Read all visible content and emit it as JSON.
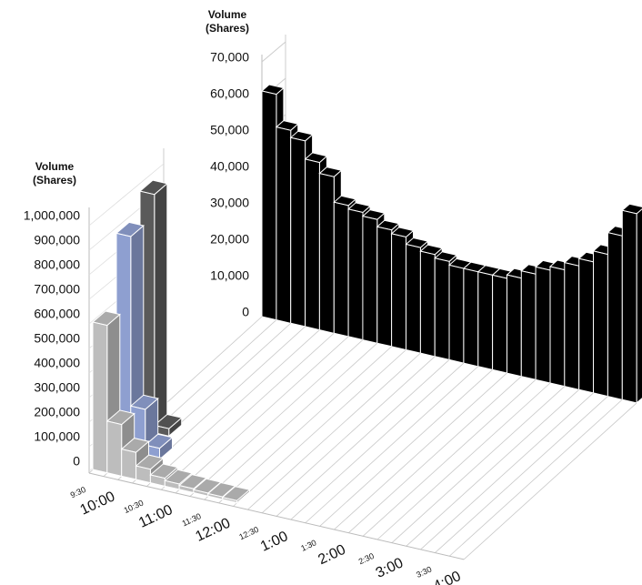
{
  "chart_data": [
    {
      "type": "bar3d",
      "ylabel": [
        "Volume",
        "(Shares)"
      ],
      "ylim": [
        0,
        1000000
      ],
      "yticks": [
        0,
        {
          "value": 100000,
          "label": "100,000"
        },
        {
          "value": 200000,
          "label": "200,000"
        },
        {
          "value": 300000,
          "label": "300,000"
        },
        {
          "value": 400000,
          "label": "400,000"
        },
        {
          "value": 500000,
          "label": "500,000"
        },
        {
          "value": 600000,
          "label": "600,000"
        },
        {
          "value": 700000,
          "label": "700,000"
        },
        {
          "value": 800000,
          "label": "800,000"
        },
        {
          "value": 900000,
          "label": "900,000"
        },
        {
          "value": 1000000,
          "label": "1,000,000"
        }
      ],
      "xticks": [
        "9:30",
        "10:00",
        "10:30",
        "11:00",
        "11:30",
        "12:00",
        "12:30",
        "1:00",
        "1:30",
        "2:00",
        "2:30",
        "3:00",
        "3:30",
        "4:00"
      ],
      "series": [
        {
          "color": "#bdbdbd",
          "values": [
            600000,
            210000,
            110000,
            55000,
            32000,
            22000,
            16000,
            12000,
            10000,
            8000
          ]
        },
        {
          "color": "#8e9fd0",
          "values": [
            880000,
            190000,
            45000
          ]
        },
        {
          "color": "#5a5a5a",
          "values": [
            970000,
            30000
          ]
        }
      ]
    },
    {
      "type": "bar3d",
      "ylabel": [
        "Volume",
        "(Shares)"
      ],
      "ylim": [
        0,
        70000
      ],
      "yticks": [
        0,
        {
          "value": 10000,
          "label": "10,000"
        },
        {
          "value": 20000,
          "label": "20,000"
        },
        {
          "value": 30000,
          "label": "30,000"
        },
        {
          "value": 40000,
          "label": "40,000"
        },
        {
          "value": 50000,
          "label": "50,000"
        },
        {
          "value": 60000,
          "label": "60,000"
        },
        {
          "value": 70000,
          "label": "70,000"
        }
      ],
      "series": [
        {
          "color": "#000000",
          "values": [
            62000,
            53000,
            51000,
            46000,
            43000,
            36000,
            35000,
            34000,
            32000,
            31000,
            29000,
            28000,
            27000,
            26000,
            26000,
            26000,
            26000,
            27000,
            29000,
            31000,
            32000,
            34000,
            36000,
            39000,
            45000,
            52000
          ]
        }
      ]
    }
  ]
}
